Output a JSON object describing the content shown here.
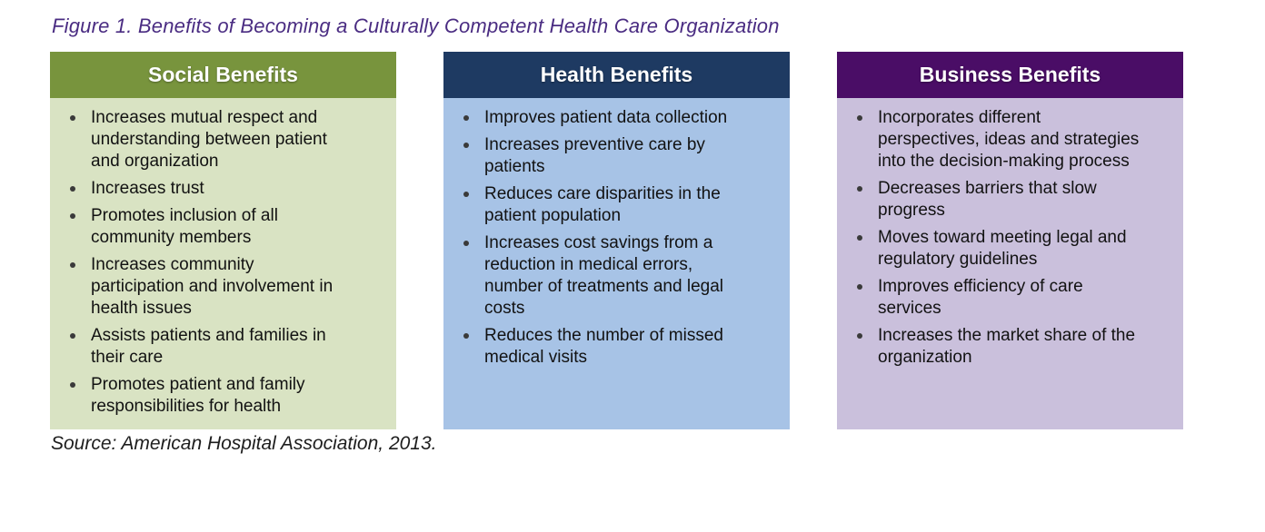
{
  "figure": {
    "title": "Figure 1. Benefits of Becoming a Culturally Competent Health Care Organization",
    "title_color": "#4A2C82",
    "source": "Source: American Hospital Association, 2013."
  },
  "columns": [
    {
      "id": "social",
      "title": "Social Benefits",
      "header_bg": "#78943D",
      "body_bg": "#D9E3C3",
      "items": [
        "Increases mutual respect and\nunderstanding between patient\nand organization",
        "Increases trust",
        "Promotes inclusion of all\ncommunity members",
        "Increases community\nparticipation and involvement in\nhealth issues",
        "Assists patients and families in\ntheir care",
        "Promotes patient and family\nresponsibilities for health"
      ]
    },
    {
      "id": "health",
      "title": "Health Benefits",
      "header_bg": "#1E3A62",
      "body_bg": "#A7C3E6",
      "items": [
        "Improves patient data collection",
        "Increases preventive care by\npatients",
        "Reduces care disparities in the\npatient population",
        "Increases cost savings from a\nreduction in medical errors,\nnumber of treatments and legal\ncosts",
        "Reduces the number of missed\nmedical visits"
      ]
    },
    {
      "id": "business",
      "title": "Business Benefits",
      "header_bg": "#4A0D66",
      "body_bg": "#CAC0DC",
      "items": [
        "Incorporates different\nperspectives, ideas and strategies\ninto the decision-making process",
        "Decreases barriers that slow\nprogress",
        "Moves toward meeting legal and\nregulatory guidelines",
        "Improves efficiency of care\nservices",
        "Increases the market share of the\norganization"
      ]
    }
  ]
}
